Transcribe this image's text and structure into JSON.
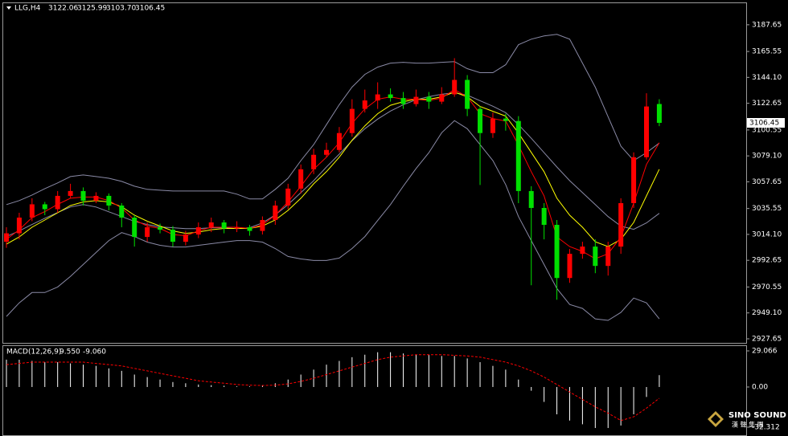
{
  "chart_data": {
    "type": "candlestick",
    "header": {
      "symbol": "LLG,H4",
      "values": [
        3122.06,
        3125.99,
        3103.7,
        3106.45
      ],
      "value_labels": [
        "3122.06",
        "3125.99",
        "3103.70",
        "3106.45"
      ]
    },
    "candles": {
      "open": [
        3008,
        3015,
        3028,
        3039,
        3035,
        3046,
        3050,
        3042,
        3046,
        3038,
        3028,
        3012,
        3020,
        3018,
        3008,
        3014,
        3020,
        3024,
        3019,
        3020,
        3017,
        3026,
        3038,
        3052,
        3068,
        3080,
        3084,
        3098,
        3118,
        3125,
        3130,
        3127,
        3122,
        3128,
        3124,
        3130,
        3142,
        3118,
        3098,
        3110,
        3108,
        3050,
        3036,
        3022,
        2978,
        2998,
        3004,
        2988,
        3004,
        3040,
        3078,
        3122.06
      ],
      "high": [
        3020,
        3032,
        3044,
        3041,
        3050,
        3056,
        3053,
        3049,
        3048,
        3040,
        3030,
        3024,
        3023,
        3021,
        3017,
        3024,
        3028,
        3026,
        3025,
        3022,
        3029,
        3042,
        3056,
        3072,
        3085,
        3090,
        3103,
        3126,
        3134,
        3140,
        3135,
        3132,
        3134,
        3132,
        3136,
        3160,
        3146,
        3120,
        3115,
        3114,
        3112,
        3054,
        3040,
        3026,
        3002,
        3008,
        3010,
        3008,
        3044,
        3082,
        3131,
        3125.99
      ],
      "low": [
        3003,
        3010,
        3025,
        3030,
        3032,
        3044,
        3038,
        3040,
        3034,
        3020,
        3004,
        3008,
        3015,
        3004,
        3005,
        3011,
        3016,
        3015,
        3016,
        3013,
        3014,
        3022,
        3035,
        3048,
        3064,
        3078,
        3082,
        3095,
        3115,
        3118,
        3124,
        3118,
        3120,
        3118,
        3122,
        3128,
        3112,
        3055,
        3094,
        3100,
        3040,
        2972,
        3010,
        2960,
        2974,
        2994,
        2982,
        2980,
        2998,
        3036,
        3076,
        3103.7
      ],
      "close": [
        3015,
        3028,
        3039,
        3035,
        3046,
        3050,
        3042,
        3046,
        3038,
        3028,
        3012,
        3020,
        3018,
        3008,
        3014,
        3020,
        3024,
        3019,
        3020,
        3017,
        3026,
        3038,
        3052,
        3068,
        3080,
        3084,
        3098,
        3118,
        3125,
        3130,
        3127,
        3122,
        3128,
        3124,
        3130,
        3142,
        3118,
        3098,
        3110,
        3108,
        3050,
        3036,
        3022,
        2978,
        2998,
        3004,
        2988,
        3004,
        3040,
        3078,
        3120,
        3106.45
      ],
      "up_color": "#ff0000",
      "down_color": "#00e000"
    },
    "overlays": [
      {
        "color": "#8a8aa6",
        "values": [
          3038.8,
          3042.1,
          3046.7,
          3052.0,
          3056.7,
          3062.0,
          3063.3,
          3062.0,
          3060.6,
          3058.0,
          3054.0,
          3051.4,
          3050.7,
          3050.0,
          3050.0,
          3050.0,
          3050.0,
          3050.0,
          3047.4,
          3043.4,
          3043.4,
          3051.4,
          3060.6,
          3075.2,
          3088.4,
          3105.0,
          3121.5,
          3136.0,
          3146.6,
          3152.6,
          3155.9,
          3156.6,
          3155.9,
          3155.9,
          3156.6,
          3157.2,
          3151.3,
          3148.0,
          3148.0,
          3154.6,
          3171.1,
          3175.7,
          3178.4,
          3179.7,
          3175.7,
          3155.9,
          3136.0,
          3111.6,
          3087.1,
          3075.2,
          3081.8,
          3089.7
        ]
      },
      {
        "color": "#8a8aa6",
        "values": [
          3012.3,
          3017.0,
          3022.3,
          3027.5,
          3032.2,
          3036.8,
          3038.8,
          3036.8,
          3032.8,
          3028.9,
          3024.9,
          3022.3,
          3020.3,
          3019.6,
          3018.9,
          3018.9,
          3019.6,
          3019.6,
          3018.9,
          3019.6,
          3023.6,
          3030.2,
          3038.8,
          3048.7,
          3058.6,
          3069.9,
          3080.5,
          3091.7,
          3101.6,
          3109.6,
          3116.2,
          3121.5,
          3125.5,
          3128.1,
          3130.1,
          3131.4,
          3129.4,
          3124.8,
          3120.2,
          3114.9,
          3105.0,
          3093.7,
          3081.8,
          3069.9,
          3058.6,
          3048.7,
          3038.8,
          3028.9,
          3020.9,
          3018.3,
          3023.6,
          3031.5
        ]
      },
      {
        "color": "#8a8aa6",
        "values": [
          2946.2,
          2957.4,
          2966.0,
          2966.0,
          2970.6,
          2979.3,
          2989.2,
          2999.1,
          3009.0,
          3015.6,
          3012.3,
          3007.7,
          3005.1,
          3003.7,
          3003.7,
          3005.1,
          3006.4,
          3007.7,
          3009.0,
          3009.0,
          3007.7,
          3002.4,
          2995.8,
          2993.8,
          2992.5,
          2992.5,
          2994.5,
          3002.4,
          3012.3,
          3025.6,
          3038.8,
          3054.0,
          3068.6,
          3081.8,
          3098.3,
          3108.3,
          3101.6,
          3088.4,
          3075.2,
          3055.3,
          3028.9,
          3009.0,
          2989.2,
          2969.3,
          2956.1,
          2952.8,
          2944.2,
          2942.9,
          2949.5,
          2961.4,
          2957.4,
          2944.2
        ]
      },
      {
        "color": "#ffff00",
        "values": [
          3006,
          3012,
          3020,
          3026,
          3032,
          3038,
          3041,
          3042,
          3041,
          3037,
          3030,
          3025,
          3021,
          3017,
          3015,
          3016,
          3018,
          3019,
          3019,
          3019,
          3021,
          3026,
          3034,
          3044,
          3056,
          3066,
          3078,
          3092,
          3104,
          3114,
          3121,
          3124,
          3126,
          3126,
          3128,
          3132,
          3128,
          3120,
          3116,
          3112,
          3098,
          3082,
          3066,
          3044,
          3030,
          3020,
          3008,
          3004,
          3010,
          3024,
          3046,
          3068
        ]
      },
      {
        "color": "#ff0000",
        "values": [
          3010,
          3018,
          3028,
          3033,
          3039,
          3044,
          3045,
          3045,
          3042,
          3036,
          3026,
          3021,
          3019,
          3014,
          3013,
          3017,
          3020,
          3020,
          3020,
          3019,
          3022,
          3030,
          3041,
          3054,
          3068,
          3078,
          3090,
          3106,
          3118,
          3126,
          3128,
          3126,
          3126,
          3125,
          3127,
          3134,
          3128,
          3114,
          3110,
          3108,
          3088,
          3066,
          3046,
          3012,
          3004,
          3000,
          2994,
          2998,
          3012,
          3040,
          3072,
          3090
        ]
      }
    ],
    "ylim": [
      2924.3,
      3205.5
    ],
    "yticks": [
      3187.65,
      3165.55,
      {
        "value": 3144.1,
        "label": "3144.10"
      },
      3122.65,
      3100.55,
      {
        "value": 3079.1,
        "label": "3079.10"
      },
      3057.65,
      3035.55,
      {
        "value": 3014.1,
        "label": "3014.10"
      },
      2992.65,
      2970.55,
      {
        "value": 2949.1,
        "label": "2949.10"
      },
      2927.65
    ],
    "last_price": 3106.45,
    "macd": {
      "label": "MACD(12,26,9)",
      "values": [
        9.55,
        -9.06
      ],
      "value_labels": [
        "9.550",
        "-9.060"
      ],
      "histogram": {
        "color": "#ffffff",
        "values": [
          22,
          22,
          21,
          20,
          20,
          19,
          18,
          17,
          15,
          13,
          10,
          8,
          6,
          4,
          3,
          2,
          1.5,
          1,
          0.5,
          0.5,
          1,
          3,
          6,
          10,
          14,
          18,
          21,
          24,
          26,
          28,
          28,
          27,
          26,
          26,
          25,
          25,
          23,
          20,
          17,
          14,
          6,
          -3,
          -12,
          -22,
          -27,
          -30,
          -33,
          -33,
          -31,
          -22,
          -8,
          9.55
        ]
      },
      "signal": {
        "color": "#ff0000",
        "values": [
          18,
          19,
          20,
          20,
          20,
          20,
          20,
          19,
          18,
          17,
          15,
          13,
          11,
          9,
          7,
          5,
          4,
          3,
          2,
          1.5,
          1.2,
          1.5,
          2.5,
          4.5,
          7,
          10,
          13,
          16,
          19,
          22,
          24,
          25,
          26,
          26,
          26,
          25.5,
          25,
          24,
          22,
          20,
          17,
          13,
          8,
          2,
          -4,
          -10,
          -16,
          -21,
          -27,
          -24,
          -17,
          -9.06
        ]
      },
      "ylim": [
        -37.5,
        32.3
      ],
      "yticks": [
        29.066,
        {
          "value": 0,
          "label": "0.00"
        },
        -32.312
      ]
    },
    "logo": "SINO SOUND",
    "logo_sub": "漢 聲 集 團"
  }
}
